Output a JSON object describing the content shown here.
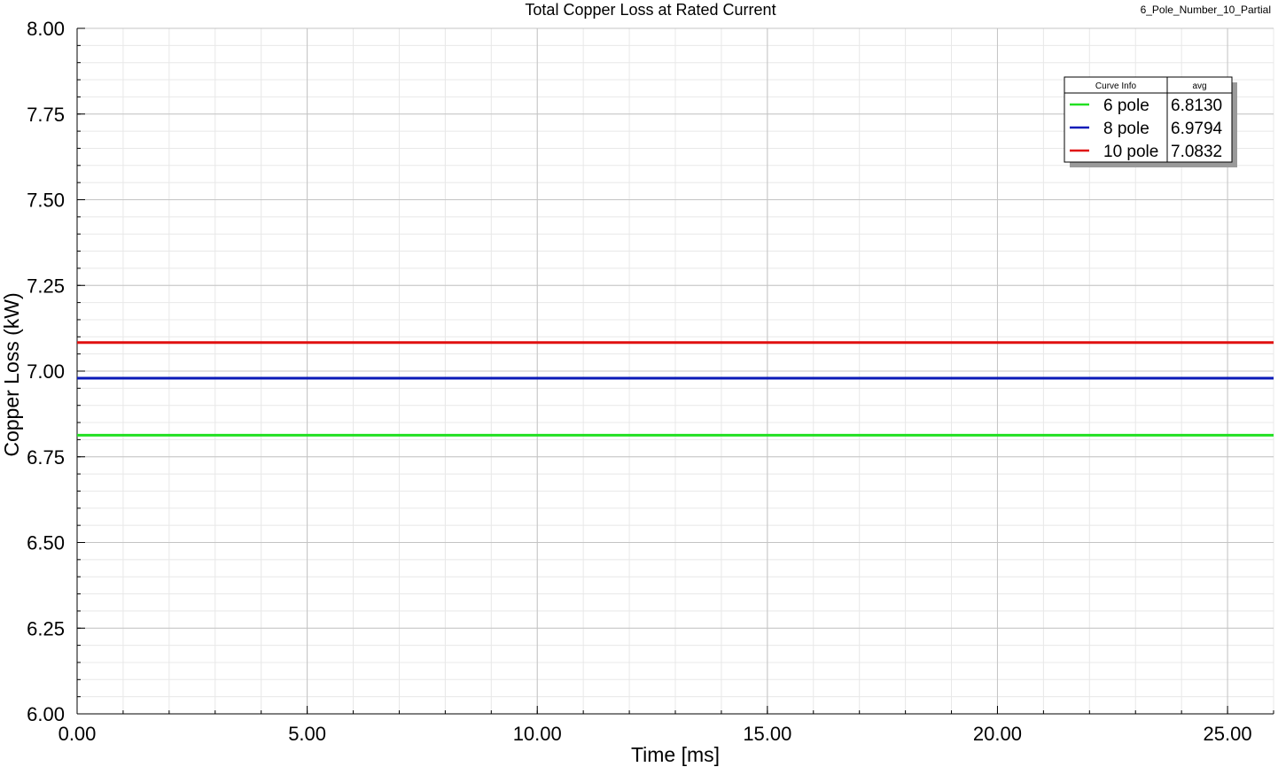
{
  "chart_data": {
    "type": "line",
    "title": "Total Copper Loss at Rated Current",
    "subtitle": "6_Pole_Number_10_Partial",
    "xlabel": "Time [ms]",
    "ylabel": "Copper Loss (kW)",
    "xlim": [
      0,
      26
    ],
    "ylim": [
      6.0,
      8.0
    ],
    "x_ticks": [
      "0.00",
      "5.00",
      "10.00",
      "15.00",
      "20.00",
      "25.00"
    ],
    "y_ticks": [
      "6.00",
      "6.25",
      "6.50",
      "6.75",
      "7.00",
      "7.25",
      "7.50",
      "7.75",
      "8.00"
    ],
    "grid": true,
    "legend": {
      "position": "top-right",
      "headers": [
        "Curve Info",
        "avg"
      ]
    },
    "series": [
      {
        "name": "6 pole",
        "color": "#22e022",
        "avg": "6.8130",
        "x": [
          0,
          26
        ],
        "y": [
          6.813,
          6.813
        ]
      },
      {
        "name": "8 pole",
        "color": "#0a1ab8",
        "avg": "6.9794",
        "x": [
          0,
          26
        ],
        "y": [
          6.9794,
          6.9794
        ]
      },
      {
        "name": "10 pole",
        "color": "#e01010",
        "avg": "7.0832",
        "x": [
          0,
          26
        ],
        "y": [
          7.0832,
          7.0832
        ]
      }
    ]
  }
}
